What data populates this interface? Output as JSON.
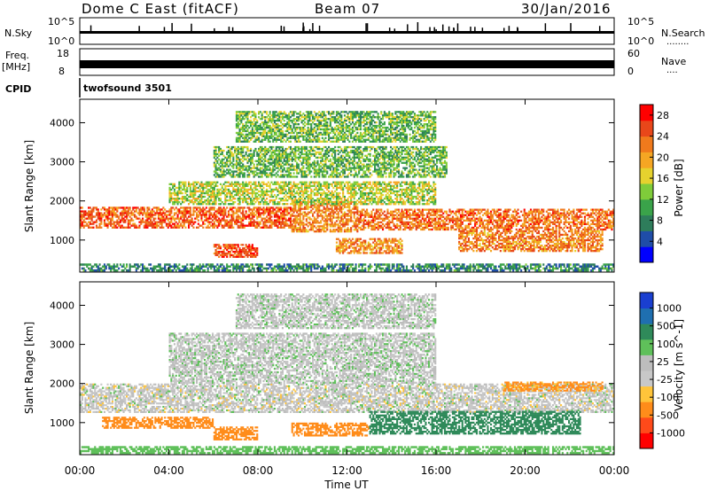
{
  "header": {
    "station": "Dome C East (fitACF)",
    "beam": "Beam 07",
    "date": "30/Jan/2016"
  },
  "strip": {
    "nsky_label": "N.Sky",
    "nsky_top": "10^5",
    "nsky_bottom": "10^0",
    "nsearch_label": "N.Search",
    "nsearch_top": "10^5",
    "nsearch_bottom": "10^0",
    "nsearch_dots": "........",
    "freq_label": "Freq.",
    "freq_unit": "[MHz]",
    "freq_top": "18",
    "freq_bottom": "8",
    "nave_label": "Nave",
    "nave_top": "60",
    "nave_bottom": "0",
    "nave_dots": "....",
    "cpid_label": "CPID",
    "cpid_value": "twofsound 3501"
  },
  "colors": {
    "power": [
      "#0000ff",
      "#1f4da8",
      "#2e7d5b",
      "#3aa34a",
      "#7fcc3a",
      "#e6d22e",
      "#f5a623",
      "#f07a1c",
      "#e8471a",
      "#ff0000"
    ],
    "velocity": [
      "#ff0000",
      "#ff4a1a",
      "#ff8c1a",
      "#ffc43a",
      "#c8c8c8",
      "#bdbdbd",
      "#5fc05a",
      "#2f8a5a",
      "#1f6fb0",
      "#1a3fd0"
    ]
  },
  "chart_data": [
    {
      "type": "heatmap",
      "panel": "power",
      "ylabel": "Slant Range [km]",
      "ylim": [
        180,
        4600
      ],
      "yticks": [
        "1000",
        "2000",
        "3000",
        "4000"
      ],
      "xlim": [
        0,
        24
      ],
      "xticks": [
        "00:00",
        "04:00",
        "08:00",
        "12:00",
        "16:00",
        "20:00",
        "00:00"
      ],
      "colorbar": {
        "label": "Power [dB]",
        "ticks": [
          "4",
          "8",
          "12",
          "16",
          "20",
          "24",
          "28"
        ],
        "range": [
          0,
          30
        ]
      },
      "bands": [
        {
          "t0": 0.0,
          "t1": 9.5,
          "r0": 1300,
          "r1": 1850,
          "val": 24
        },
        {
          "t0": 9.5,
          "t1": 12.5,
          "r0": 1200,
          "r1": 2000,
          "val": 22
        },
        {
          "t0": 12.5,
          "t1": 24.0,
          "r0": 1250,
          "r1": 1800,
          "val": 23
        },
        {
          "t0": 6.0,
          "t1": 8.0,
          "r0": 550,
          "r1": 900,
          "val": 25
        },
        {
          "t0": 11.5,
          "t1": 14.5,
          "r0": 650,
          "r1": 1050,
          "val": 21
        },
        {
          "t0": 17.0,
          "t1": 23.5,
          "r0": 700,
          "r1": 1250,
          "val": 22
        },
        {
          "t0": 4.0,
          "t1": 16.0,
          "r0": 1900,
          "r1": 2500,
          "val": 15
        },
        {
          "t0": 6.0,
          "t1": 16.5,
          "r0": 2600,
          "r1": 3400,
          "val": 12
        },
        {
          "t0": 7.0,
          "t1": 16.0,
          "r0": 3500,
          "r1": 4300,
          "val": 12
        },
        {
          "t0": 0.0,
          "t1": 24.0,
          "r0": 200,
          "r1": 400,
          "val": 8
        }
      ]
    },
    {
      "type": "heatmap",
      "panel": "velocity",
      "ylabel": "Slant Range [km]",
      "ylim": [
        180,
        4600
      ],
      "yticks": [
        "1000",
        "2000",
        "3000",
        "4000"
      ],
      "xlim": [
        0,
        24
      ],
      "xticks": [
        "00:00",
        "04:00",
        "08:00",
        "12:00",
        "16:00",
        "20:00",
        "00:00"
      ],
      "xlabel": "Time UT",
      "colorbar": {
        "label": "Velocity [m s^-1]",
        "ticks": [
          "1000",
          "500",
          "100",
          "25",
          "-25",
          "-100",
          "-500",
          "-1000"
        ]
      },
      "bands": [
        {
          "t0": 0.0,
          "t1": 24.0,
          "r0": 1250,
          "r1": 2000,
          "val": 0
        },
        {
          "t0": 4.0,
          "t1": 16.0,
          "r0": 2000,
          "r1": 3300,
          "val": 5
        },
        {
          "t0": 7.0,
          "t1": 16.0,
          "r0": 3400,
          "r1": 4300,
          "val": 5
        },
        {
          "t0": 1.0,
          "t1": 6.0,
          "r0": 850,
          "r1": 1150,
          "val": -150
        },
        {
          "t0": 6.0,
          "t1": 8.0,
          "r0": 550,
          "r1": 900,
          "val": -250
        },
        {
          "t0": 9.5,
          "t1": 13.0,
          "r0": 650,
          "r1": 1000,
          "val": -300
        },
        {
          "t0": 13.0,
          "t1": 22.5,
          "r0": 700,
          "r1": 1300,
          "val": 180
        },
        {
          "t0": 19.0,
          "t1": 23.5,
          "r0": 1800,
          "r1": 2050,
          "val": -120
        },
        {
          "t0": 0.0,
          "t1": 24.0,
          "r0": 200,
          "r1": 400,
          "val": 60
        }
      ]
    }
  ]
}
